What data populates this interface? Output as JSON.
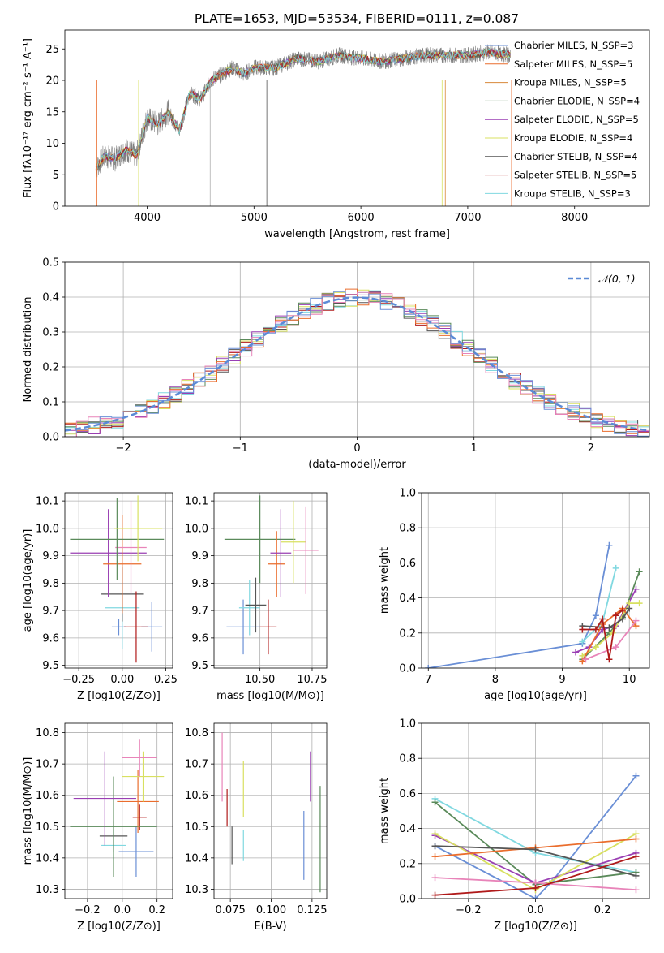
{
  "chart_data": [
    {
      "type": "line",
      "title": "PLATE=1653, MJD=53534, FIBERID=0111, z=0.087",
      "xlabel": "wavelength [Angstrom, rest frame]",
      "ylabel": "Flux [fλ10⁻¹⁷ erg cm⁻² s⁻¹ A⁻¹]",
      "xlim": [
        3230,
        8700
      ],
      "ylim": [
        0,
        28
      ],
      "xticks": [
        4000,
        5000,
        6000,
        7000,
        8000
      ],
      "yticks": [
        0,
        5,
        10,
        15,
        20,
        25
      ],
      "grid": false,
      "legend_position": "right",
      "spectrum_envelope": {
        "wavelength": [
          3520,
          3600,
          3700,
          3800,
          3900,
          4000,
          4100,
          4200,
          4300,
          4400,
          4500,
          4600,
          4700,
          4800,
          4900,
          5000,
          5200,
          5400,
          5600,
          5800,
          6000,
          6200,
          6400,
          6600,
          6800,
          7000,
          7200,
          7400
        ],
        "flux": [
          6,
          8,
          7.5,
          9,
          8,
          14,
          13,
          15,
          12,
          18,
          17,
          20,
          21,
          22,
          21,
          22,
          22,
          23.5,
          23,
          24,
          23.5,
          23,
          23.5,
          24,
          24,
          24,
          24.5,
          24
        ]
      },
      "series": [
        {
          "name": "Chabrier MILES, N_SSP=3",
          "color": "#6a8fd6"
        },
        {
          "name": "Salpeter MILES, N_SSP=5",
          "color": "#ea6d2d"
        },
        {
          "name": "Kroupa MILES, N_SSP=5",
          "color": "#d8883a"
        },
        {
          "name": "Chabrier ELODIE, N_SSP=4",
          "color": "#5a8a5a"
        },
        {
          "name": "Salpeter ELODIE, N_SSP=5",
          "color": "#9a3fb3"
        },
        {
          "name": "Kroupa ELODIE, N_SSP=4",
          "color": "#d8e060"
        },
        {
          "name": "Chabrier STELIB, N_SSP=4",
          "color": "#555555"
        },
        {
          "name": "Salpeter STELIB, N_SSP=5",
          "color": "#b01a1a"
        },
        {
          "name": "Kroupa STELIB, N_SSP=3",
          "color": "#80d8e0"
        }
      ]
    },
    {
      "type": "line",
      "xlabel": "(data-model)/error",
      "ylabel": "Normed distribution",
      "xlim": [
        -2.5,
        2.5
      ],
      "ylim": [
        0,
        0.5
      ],
      "xticks": [
        -2,
        -1,
        0,
        1,
        2
      ],
      "xtick_labels": [
        "−2",
        "−1",
        "0",
        "1",
        "2"
      ],
      "yticks": [
        0.0,
        0.1,
        0.2,
        0.3,
        0.4,
        0.5
      ],
      "grid": true,
      "legend_position": "top-right",
      "series": [
        {
          "name": "𝒩(0, 1)",
          "color": "#5b8ad6",
          "style": "dashed"
        }
      ],
      "histogram_colors": [
        "#80d8e0",
        "#b01a1a",
        "#555555",
        "#d8e060",
        "#9a3fb3",
        "#5a8a5a",
        "#ea6d2d",
        "#e884b9",
        "#6a8fd6"
      ]
    },
    {
      "type": "scatter",
      "xlabel": "Z [log10(Z/Z⊙)]",
      "ylabel": "age [log10(age/yr)]",
      "xlim": [
        -0.33,
        0.29
      ],
      "ylim": [
        9.49,
        10.13
      ],
      "xticks": [
        -0.25,
        0.0,
        0.25
      ],
      "xtick_labels": [
        "−0.25",
        "0.00",
        "0.25"
      ],
      "yticks": [
        9.5,
        9.6,
        9.7,
        9.8,
        9.9,
        10.0,
        10.1
      ],
      "grid": true,
      "points": [
        {
          "x": -0.02,
          "y": 9.64,
          "xerr": 0.04,
          "yerr": 0.03,
          "color": "#6a8fd6"
        },
        {
          "x": 0.0,
          "y": 9.71,
          "xerr": 0.1,
          "yerr": 0.15,
          "color": "#80d8e0"
        },
        {
          "x": 0.0,
          "y": 9.76,
          "xerr": 0.12,
          "yerr": 0.1,
          "color": "#555555"
        },
        {
          "x": 0.17,
          "y": 9.64,
          "xerr": 0.06,
          "yerr": 0.09,
          "color": "#6a8fd6"
        },
        {
          "x": 0.08,
          "y": 9.64,
          "xerr": 0.07,
          "yerr": 0.13,
          "color": "#b01a1a"
        },
        {
          "x": -0.08,
          "y": 9.91,
          "xerr": 0.22,
          "yerr": 0.16,
          "color": "#9a3fb3"
        },
        {
          "x": 0.0,
          "y": 9.87,
          "xerr": 0.11,
          "yerr": 0.18,
          "color": "#ea6d2d"
        },
        {
          "x": 0.05,
          "y": 9.93,
          "xerr": 0.09,
          "yerr": 0.17,
          "color": "#e884b9"
        },
        {
          "x": -0.03,
          "y": 9.96,
          "xerr": 0.27,
          "yerr": 0.15,
          "color": "#5a8a5a"
        },
        {
          "x": 0.09,
          "y": 10.0,
          "xerr": 0.14,
          "yerr": 0.12,
          "color": "#d8e060"
        }
      ]
    },
    {
      "type": "scatter",
      "xlabel": "mass [log10(M/M⊙)]",
      "xlim": [
        10.28,
        10.82
      ],
      "ylim": [
        9.49,
        10.13
      ],
      "xticks": [
        10.5,
        10.75
      ],
      "xtick_labels": [
        "10.50",
        "10.75"
      ],
      "yticks": [
        9.5,
        9.6,
        9.7,
        9.8,
        9.9,
        10.0,
        10.1
      ],
      "grid": true,
      "points": [
        {
          "x": 10.42,
          "y": 9.64,
          "xerr": 0.08,
          "yerr": 0.1,
          "color": "#6a8fd6"
        },
        {
          "x": 10.45,
          "y": 9.71,
          "xerr": 0.05,
          "yerr": 0.1,
          "color": "#80d8e0"
        },
        {
          "x": 10.48,
          "y": 9.72,
          "xerr": 0.05,
          "yerr": 0.1,
          "color": "#555555"
        },
        {
          "x": 10.54,
          "y": 9.64,
          "xerr": 0.04,
          "yerr": 0.1,
          "color": "#b01a1a"
        },
        {
          "x": 10.5,
          "y": 9.96,
          "xerr": 0.17,
          "yerr": 0.16,
          "color": "#5a8a5a"
        },
        {
          "x": 10.58,
          "y": 9.87,
          "xerr": 0.04,
          "yerr": 0.12,
          "color": "#ea6d2d"
        },
        {
          "x": 10.6,
          "y": 9.91,
          "xerr": 0.05,
          "yerr": 0.16,
          "color": "#9a3fb3"
        },
        {
          "x": 10.66,
          "y": 9.95,
          "xerr": 0.06,
          "yerr": 0.15,
          "color": "#d8e060"
        },
        {
          "x": 10.72,
          "y": 9.92,
          "xerr": 0.06,
          "yerr": 0.16,
          "color": "#e884b9"
        }
      ]
    },
    {
      "type": "line",
      "xlabel": "age [log10(age/yr)]",
      "ylabel": "mass weight",
      "xlim": [
        6.9,
        10.3
      ],
      "ylim": [
        0,
        1.0
      ],
      "xticks": [
        7,
        8,
        9,
        10
      ],
      "yticks": [
        0.0,
        0.2,
        0.4,
        0.6,
        0.8,
        1.0
      ],
      "grid": true,
      "series": [
        {
          "name": "Chabrier MILES",
          "color": "#6a8fd6",
          "x": [
            7.0,
            9.3,
            9.5,
            9.7
          ],
          "y": [
            0.0,
            0.14,
            0.3,
            0.7
          ]
        },
        {
          "name": "Kroupa STELIB",
          "color": "#80d8e0",
          "x": [
            9.3,
            9.6,
            9.8
          ],
          "y": [
            0.15,
            0.26,
            0.57
          ]
        },
        {
          "name": "Chabrier ELODIE",
          "color": "#5a8a5a",
          "x": [
            9.3,
            9.7,
            9.9,
            10.15
          ],
          "y": [
            0.05,
            0.2,
            0.29,
            0.55
          ]
        },
        {
          "name": "Salpeter ELODIE",
          "color": "#9a3fb3",
          "x": [
            9.2,
            9.4,
            9.6,
            9.8,
            10.1
          ],
          "y": [
            0.09,
            0.12,
            0.22,
            0.24,
            0.45
          ]
        },
        {
          "name": "Kroupa ELODIE",
          "color": "#d8e060",
          "x": [
            9.3,
            9.5,
            9.75,
            10.0,
            10.15
          ],
          "y": [
            0.07,
            0.12,
            0.2,
            0.37,
            0.37
          ]
        },
        {
          "name": "Salpeter MILES",
          "color": "#ea6d2d",
          "x": [
            9.3,
            9.6,
            9.9,
            10.1
          ],
          "y": [
            0.04,
            0.25,
            0.34,
            0.24
          ]
        },
        {
          "name": "Kroupa MILES",
          "color": "#e884b9",
          "x": [
            9.35,
            9.8,
            10.1
          ],
          "y": [
            0.05,
            0.12,
            0.27
          ]
        },
        {
          "name": "Chabrier STELIB",
          "color": "#555555",
          "x": [
            9.3,
            9.7,
            9.9,
            10.0
          ],
          "y": [
            0.24,
            0.23,
            0.28,
            0.34
          ]
        },
        {
          "name": "Salpeter STELIB",
          "color": "#b01a1a",
          "x": [
            9.3,
            9.5,
            9.6,
            9.7,
            9.8,
            9.9
          ],
          "y": [
            0.22,
            0.22,
            0.28,
            0.05,
            0.3,
            0.33
          ]
        }
      ]
    },
    {
      "type": "scatter",
      "xlabel": "Z [log10(Z/Z⊙)]",
      "ylabel": "mass [log10(M/M⊙)]",
      "xlim": [
        -0.33,
        0.29
      ],
      "ylim": [
        10.27,
        10.83
      ],
      "xticks": [
        -0.2,
        0.0,
        0.2
      ],
      "xtick_labels": [
        "−0.2",
        "0.0",
        "0.2"
      ],
      "yticks": [
        10.3,
        10.4,
        10.5,
        10.6,
        10.7,
        10.8
      ],
      "grid": true,
      "points": [
        {
          "x": 0.08,
          "y": 10.42,
          "xerr": 0.1,
          "yerr": 0.08,
          "color": "#6a8fd6"
        },
        {
          "x": -0.05,
          "y": 10.44,
          "xerr": 0.07,
          "yerr": 0.05,
          "color": "#80d8e0"
        },
        {
          "x": -0.05,
          "y": 10.47,
          "xerr": 0.08,
          "yerr": 0.05,
          "color": "#555555"
        },
        {
          "x": 0.1,
          "y": 10.53,
          "xerr": 0.04,
          "yerr": 0.04,
          "color": "#b01a1a"
        },
        {
          "x": -0.05,
          "y": 10.5,
          "xerr": 0.25,
          "yerr": 0.16,
          "color": "#5a8a5a"
        },
        {
          "x": 0.09,
          "y": 10.58,
          "xerr": 0.12,
          "yerr": 0.1,
          "color": "#ea6d2d"
        },
        {
          "x": -0.1,
          "y": 10.59,
          "xerr": 0.18,
          "yerr": 0.15,
          "color": "#9a3fb3"
        },
        {
          "x": 0.12,
          "y": 10.66,
          "xerr": 0.12,
          "yerr": 0.08,
          "color": "#d8e060"
        },
        {
          "x": 0.1,
          "y": 10.72,
          "xerr": 0.1,
          "yerr": 0.06,
          "color": "#e884b9"
        }
      ]
    },
    {
      "type": "scatter",
      "xlabel": "E(B-V)",
      "xlim": [
        0.065,
        0.134
      ],
      "ylim": [
        10.27,
        10.83
      ],
      "xticks": [
        0.075,
        0.1,
        0.125
      ],
      "xtick_labels": [
        "0.075",
        "0.100",
        "0.125"
      ],
      "yticks": [
        10.3,
        10.4,
        10.5,
        10.6,
        10.7,
        10.8
      ],
      "grid": true,
      "points": [
        {
          "x": 0.07,
          "y": 10.69,
          "yerr": 0.11,
          "color": "#e884b9"
        },
        {
          "x": 0.073,
          "y": 10.56,
          "yerr": 0.06,
          "color": "#b01a1a"
        },
        {
          "x": 0.076,
          "y": 10.44,
          "yerr": 0.06,
          "color": "#555555"
        },
        {
          "x": 0.083,
          "y": 10.44,
          "yerr": 0.05,
          "color": "#80d8e0"
        },
        {
          "x": 0.083,
          "y": 10.62,
          "yerr": 0.09,
          "color": "#d8e060"
        },
        {
          "x": 0.12,
          "y": 10.44,
          "yerr": 0.11,
          "color": "#6a8fd6"
        },
        {
          "x": 0.124,
          "y": 10.66,
          "yerr": 0.08,
          "color": "#9a3fb3"
        },
        {
          "x": 0.13,
          "y": 10.46,
          "yerr": 0.17,
          "color": "#5a8a5a"
        }
      ]
    },
    {
      "type": "line",
      "xlabel": "Z [log10(Z/Z⊙)]",
      "ylabel": "mass weight",
      "xlim": [
        -0.34,
        0.34
      ],
      "ylim": [
        0,
        1.0
      ],
      "xticks": [
        -0.2,
        0.0,
        0.2
      ],
      "xtick_labels": [
        "−0.2",
        "0.0",
        "0.2"
      ],
      "yticks": [
        0.0,
        0.2,
        0.4,
        0.6,
        0.8,
        1.0
      ],
      "grid": true,
      "series": [
        {
          "name": "Chabrier MILES",
          "color": "#6a8fd6",
          "x": [
            -0.3,
            0.0,
            0.05,
            0.3
          ],
          "y": [
            0.3,
            0.0,
            0.1,
            0.7
          ]
        },
        {
          "name": "Kroupa STELIB",
          "color": "#80d8e0",
          "x": [
            -0.3,
            0.0,
            0.3
          ],
          "y": [
            0.57,
            0.26,
            0.15
          ]
        },
        {
          "name": "Chabrier ELODIE",
          "color": "#5a8a5a",
          "x": [
            -0.3,
            0.0,
            0.3
          ],
          "y": [
            0.55,
            0.08,
            0.15
          ]
        },
        {
          "name": "Salpeter ELODIE",
          "color": "#9a3fb3",
          "x": [
            -0.3,
            0.0,
            0.3
          ],
          "y": [
            0.36,
            0.09,
            0.26
          ]
        },
        {
          "name": "Kroupa ELODIE",
          "color": "#d8e060",
          "x": [
            -0.3,
            0.0,
            0.3
          ],
          "y": [
            0.37,
            0.05,
            0.37
          ]
        },
        {
          "name": "Salpeter MILES",
          "color": "#ea6d2d",
          "x": [
            -0.3,
            0.0,
            0.3
          ],
          "y": [
            0.24,
            0.29,
            0.34
          ]
        },
        {
          "name": "Kroupa MILES",
          "color": "#e884b9",
          "x": [
            -0.3,
            0.0,
            0.3
          ],
          "y": [
            0.12,
            0.09,
            0.05
          ]
        },
        {
          "name": "Chabrier STELIB",
          "color": "#555555",
          "x": [
            -0.3,
            0.0,
            0.3
          ],
          "y": [
            0.3,
            0.28,
            0.13
          ]
        },
        {
          "name": "Salpeter STELIB",
          "color": "#b01a1a",
          "x": [
            -0.3,
            0.0,
            0.3
          ],
          "y": [
            0.02,
            0.06,
            0.24
          ]
        }
      ]
    }
  ]
}
